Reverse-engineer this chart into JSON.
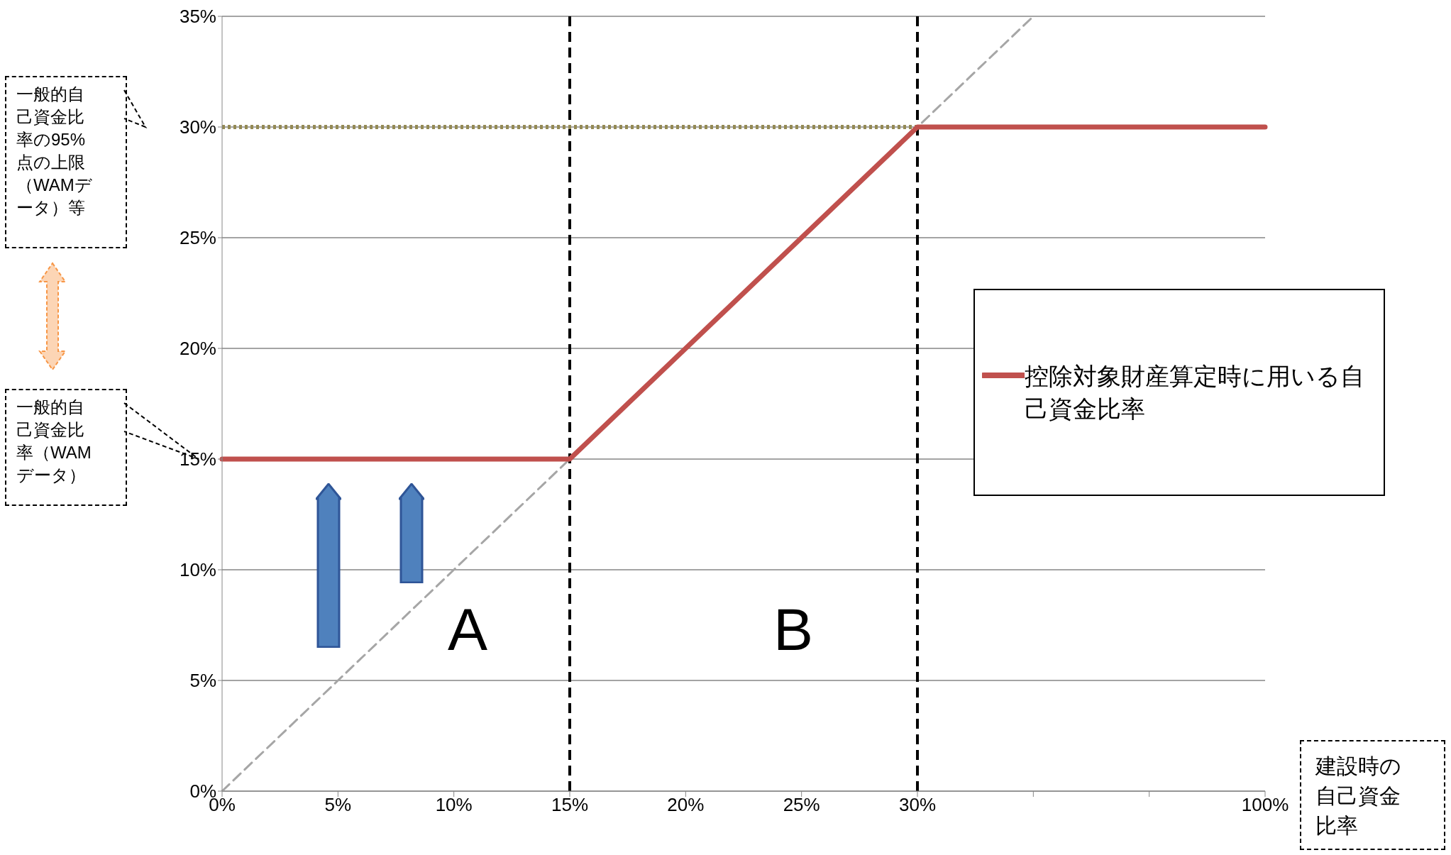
{
  "chart_data": {
    "type": "line",
    "categories": [
      "0%",
      "5%",
      "10%",
      "15%",
      "20%",
      "25%",
      "30%",
      null,
      null,
      "100%"
    ],
    "series": [
      {
        "name": "控除対象財産算定時に用いる自己資金比率",
        "color": "#c0504d",
        "values": [
          15,
          15,
          15,
          15,
          20,
          25,
          30,
          30,
          30,
          30
        ],
        "line_style": "solid"
      },
      {
        "color": "#a6a6a6",
        "values": [
          0,
          5,
          10,
          15,
          20,
          25,
          30,
          35,
          null,
          null
        ],
        "line_style": "dashed"
      },
      {
        "color": "#948a54",
        "values": [
          30,
          30,
          30,
          30,
          30,
          30,
          30,
          null,
          null,
          null
        ],
        "line_style": "dotted"
      }
    ],
    "ylim": [
      0,
      35
    ],
    "yticks": [
      {
        "value": 0,
        "label": "0%"
      },
      {
        "value": 5,
        "label": "5%"
      },
      {
        "value": 10,
        "label": "10%"
      },
      {
        "value": 15,
        "label": "15%"
      },
      {
        "value": 20,
        "label": "20%"
      },
      {
        "value": 25,
        "label": "25%"
      },
      {
        "value": 30,
        "label": "30%"
      },
      {
        "value": 35,
        "label": "35%"
      }
    ],
    "ref_lines": [
      {
        "axis": "x",
        "value": "15%",
        "color": "#000000",
        "line_style": "dashed"
      },
      {
        "axis": "x",
        "value": "30%",
        "color": "#000000",
        "line_style": "dashed"
      }
    ],
    "annotations": [
      "一般的自己資金比率の95%点の上限（WAMデータ）等",
      "一般的自己資金比率（WAMデータ）",
      "A",
      "B",
      "建設時の自己資金比率"
    ],
    "grid": "y",
    "legend": "right",
    "marker": "none"
  }
}
